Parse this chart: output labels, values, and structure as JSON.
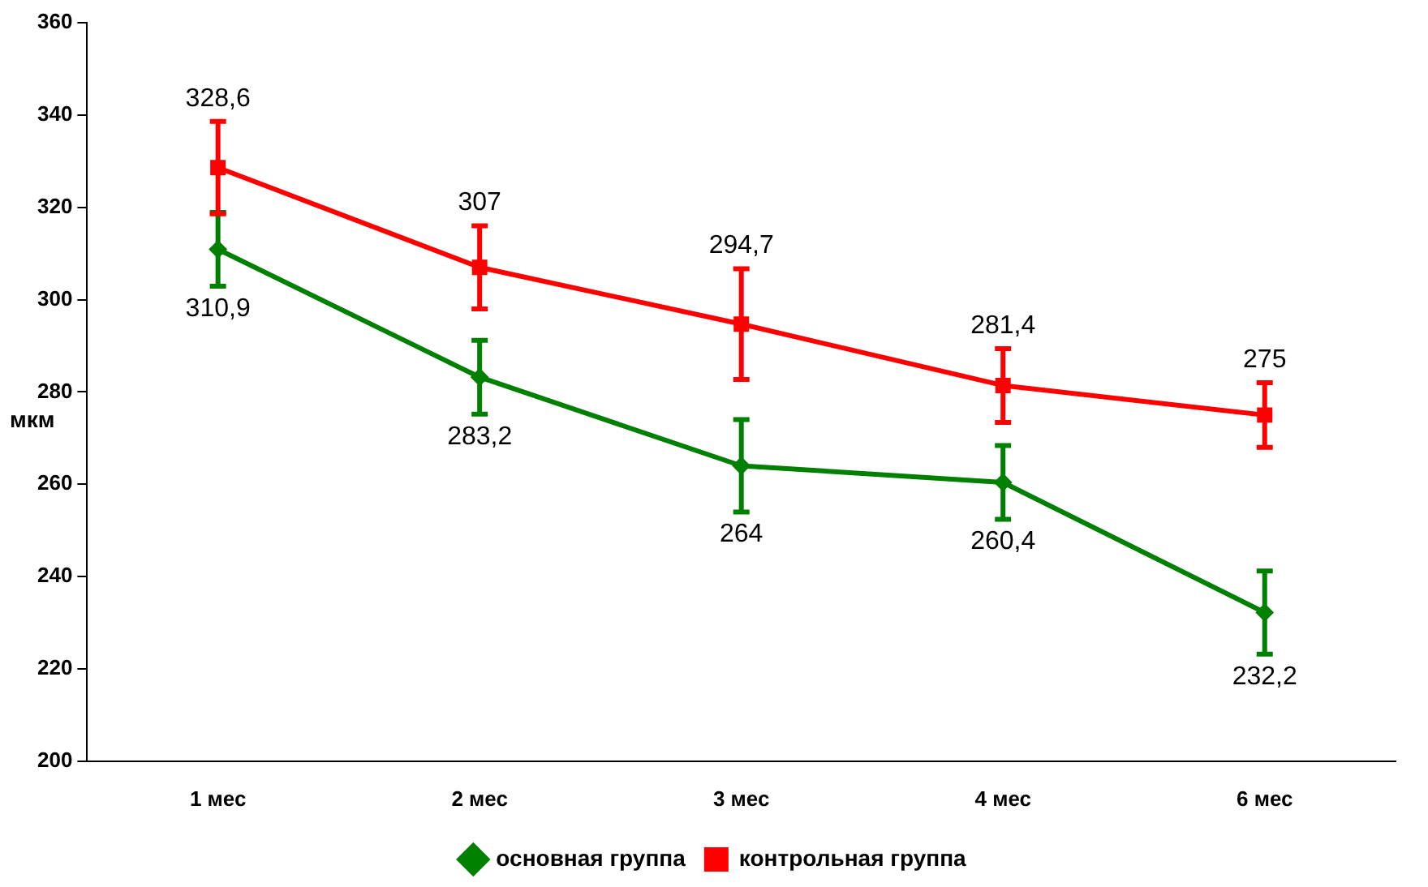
{
  "chart_data": {
    "type": "line",
    "ylabel": "мкм",
    "categories": [
      "1 мес",
      "2 мес",
      "3 мес",
      "4 мес",
      "6 мес"
    ],
    "series": [
      {
        "name": "основная группа",
        "color": "#008000",
        "marker": "diamond",
        "values": [
          310.9,
          283.2,
          264,
          260.4,
          232.2
        ],
        "errors": [
          8,
          8,
          10,
          8,
          9
        ],
        "value_labels": [
          "310,9",
          "283,2",
          "264",
          "260,4",
          "232,2"
        ]
      },
      {
        "name": "контрольная группа",
        "color": "#ff0000",
        "marker": "square",
        "values": [
          328.6,
          307,
          294.7,
          281.4,
          275
        ],
        "errors": [
          10,
          9,
          12,
          8,
          7
        ],
        "value_labels": [
          "328,6",
          "307",
          "294,7",
          "281,4",
          "275"
        ]
      }
    ],
    "ylim": [
      200,
      360
    ],
    "yticks": [
      200,
      220,
      240,
      260,
      280,
      300,
      320,
      340,
      360
    ],
    "grid": false,
    "legend": "bottom"
  }
}
